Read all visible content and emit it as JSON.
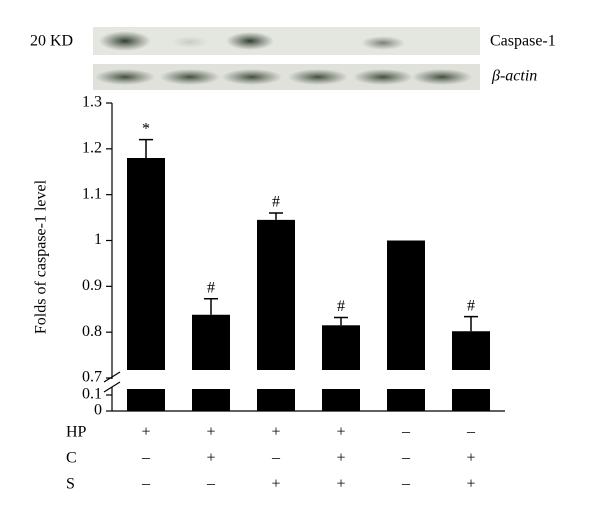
{
  "chart_data": {
    "type": "bar",
    "blot": {
      "size_label": "20 KD",
      "bands": [
        "Caspase-1",
        "β-actin"
      ]
    },
    "y_label": "Folds of caspase-1 level",
    "categories": [
      null,
      null,
      null,
      null,
      null,
      null
    ],
    "values": [
      1.18,
      0.838,
      1.045,
      0.815,
      1.0,
      0.802
    ],
    "errors": [
      0.04,
      0.035,
      0.015,
      0.017,
      null,
      0.032
    ],
    "annotations": [
      "*",
      "#",
      "#",
      "#",
      null,
      "#"
    ],
    "color": "#000000",
    "ylim": [
      0.7,
      1.3
    ],
    "yticks": [
      0.7,
      0.8,
      0.9,
      1,
      1.1,
      1.2,
      1.3
    ],
    "lower_ylim": [
      0,
      0.1
    ],
    "lower_yticks": [
      0,
      0.1
    ],
    "treatments": [
      {
        "name": "HP",
        "signs": [
          "+",
          "+",
          "+",
          "+",
          "–",
          "–"
        ]
      },
      {
        "name": "C",
        "signs": [
          "–",
          "+",
          "–",
          "+",
          "–",
          "+"
        ]
      },
      {
        "name": "S",
        "signs": [
          "–",
          "–",
          "+",
          "+",
          "–",
          "+"
        ]
      }
    ]
  }
}
